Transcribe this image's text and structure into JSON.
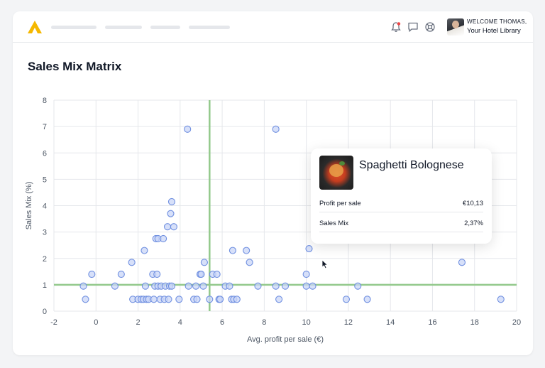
{
  "header": {
    "welcome": "WELCOME THOMAS,",
    "library": "Your Hotel Library",
    "icons": [
      "logo-icon",
      "bell-icon",
      "chat-icon",
      "support-icon"
    ],
    "notification_dot_color": "#ef4444",
    "brand_color": "#f5b800"
  },
  "page": {
    "title": "Sales Mix Matrix"
  },
  "tooltip": {
    "name": "Spaghetti Bolognese",
    "rows": [
      {
        "label": "Profit per sale",
        "value": "€10,13"
      },
      {
        "label": "Sales Mix",
        "value": "2,37%"
      }
    ]
  },
  "chart_data": {
    "type": "scatter",
    "title": "Sales Mix Matrix",
    "xlabel": "Avg. profit per sale (€)",
    "ylabel": "Sales Mix (%)",
    "xlim": [
      -2,
      20
    ],
    "ylim": [
      0,
      8
    ],
    "x_ticks": [
      -2,
      0,
      2,
      4,
      6,
      8,
      10,
      12,
      14,
      16,
      18,
      20
    ],
    "y_ticks": [
      0,
      1,
      2,
      3,
      4,
      5,
      6,
      7,
      8
    ],
    "grid": true,
    "threshold_x": 5.4,
    "threshold_y": 1.0,
    "threshold_color": "#93c98b",
    "point_fill": "#c9d6f7",
    "point_stroke": "#6f8fe0",
    "points": [
      [
        -0.6,
        0.95
      ],
      [
        -0.5,
        0.45
      ],
      [
        -0.2,
        1.4
      ],
      [
        0.9,
        0.95
      ],
      [
        1.2,
        1.4
      ],
      [
        1.7,
        1.85
      ],
      [
        1.75,
        0.45
      ],
      [
        2.0,
        0.45
      ],
      [
        2.15,
        0.45
      ],
      [
        2.25,
        0.45
      ],
      [
        2.3,
        2.3
      ],
      [
        2.35,
        0.95
      ],
      [
        2.4,
        0.45
      ],
      [
        2.5,
        0.45
      ],
      [
        2.7,
        1.4
      ],
      [
        2.75,
        0.45
      ],
      [
        2.8,
        0.95
      ],
      [
        2.85,
        2.75
      ],
      [
        2.9,
        1.4
      ],
      [
        2.95,
        2.75
      ],
      [
        2.95,
        0.95
      ],
      [
        3.05,
        0.45
      ],
      [
        3.1,
        0.95
      ],
      [
        3.2,
        2.75
      ],
      [
        3.25,
        0.45
      ],
      [
        3.3,
        0.95
      ],
      [
        3.4,
        3.2
      ],
      [
        3.45,
        0.45
      ],
      [
        3.5,
        0.95
      ],
      [
        3.55,
        3.7
      ],
      [
        3.6,
        4.15
      ],
      [
        3.6,
        0.95
      ],
      [
        3.7,
        3.2
      ],
      [
        3.95,
        0.45
      ],
      [
        4.35,
        6.9
      ],
      [
        4.4,
        0.95
      ],
      [
        4.65,
        0.45
      ],
      [
        4.75,
        0.95
      ],
      [
        4.8,
        0.45
      ],
      [
        4.95,
        1.4
      ],
      [
        5.0,
        1.4
      ],
      [
        5.1,
        0.95
      ],
      [
        5.15,
        1.85
      ],
      [
        5.4,
        0.45
      ],
      [
        5.55,
        1.4
      ],
      [
        5.75,
        1.4
      ],
      [
        5.85,
        0.45
      ],
      [
        5.9,
        0.45
      ],
      [
        6.15,
        0.95
      ],
      [
        6.35,
        0.95
      ],
      [
        6.45,
        0.45
      ],
      [
        6.5,
        2.3
      ],
      [
        6.55,
        0.45
      ],
      [
        6.7,
        0.45
      ],
      [
        7.15,
        2.3
      ],
      [
        7.3,
        1.85
      ],
      [
        7.7,
        0.95
      ],
      [
        8.55,
        6.9
      ],
      [
        8.55,
        0.95
      ],
      [
        8.7,
        0.45
      ],
      [
        9.0,
        0.95
      ],
      [
        10.0,
        1.4
      ],
      [
        10.0,
        0.95
      ],
      [
        10.13,
        2.37
      ],
      [
        10.3,
        0.95
      ],
      [
        11.9,
        0.45
      ],
      [
        12.45,
        0.95
      ],
      [
        12.9,
        0.45
      ],
      [
        17.4,
        1.85
      ],
      [
        19.25,
        0.45
      ]
    ]
  }
}
